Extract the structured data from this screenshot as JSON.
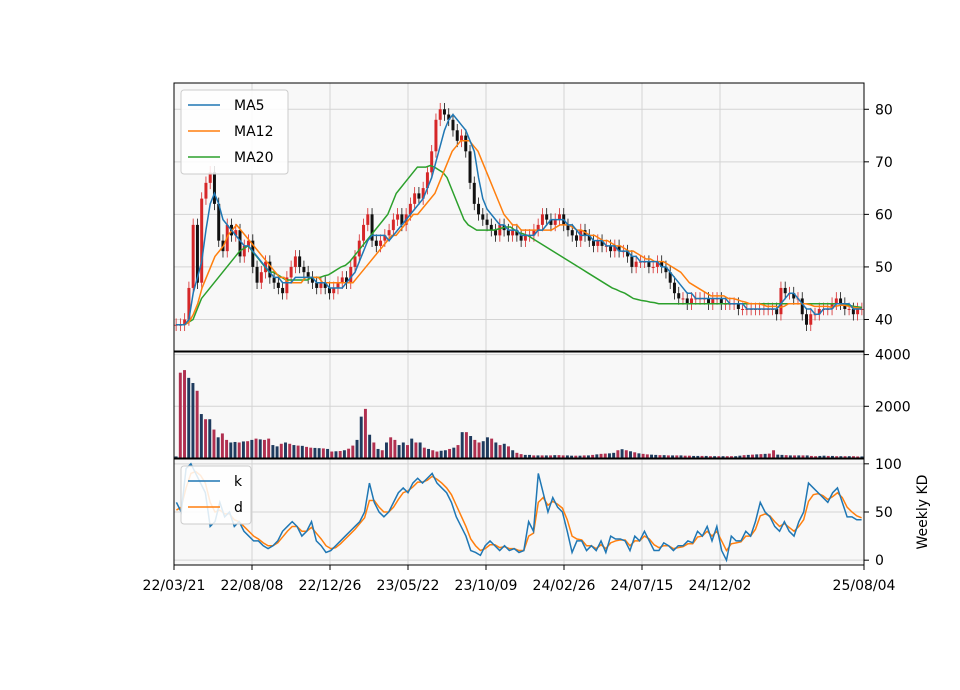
{
  "chart_data": [
    {
      "panel": "price",
      "type": "candlestick",
      "ylim": [
        34,
        85
      ],
      "yticks": [
        40,
        50,
        60,
        70,
        80
      ],
      "grid": true,
      "legend": {
        "placement": "top-left",
        "entries": [
          {
            "label": "MA5",
            "color": "#1f77b4"
          },
          {
            "label": "MA12",
            "color": "#ff7f0e"
          },
          {
            "label": "MA20",
            "color": "#2ca02c"
          }
        ]
      },
      "up_color": "#d62728",
      "down_color": "#111111",
      "close": [
        39,
        39,
        40,
        46,
        58,
        47,
        63,
        66,
        68,
        62,
        55,
        53,
        58,
        56,
        57,
        52,
        54,
        55,
        50,
        47,
        49,
        51,
        48,
        47,
        46,
        45,
        48,
        50,
        52,
        50,
        49,
        48,
        47,
        46,
        47,
        46,
        45,
        46,
        47,
        48,
        47,
        50,
        52,
        55,
        58,
        60,
        55,
        54,
        55,
        56,
        57,
        59,
        60,
        58,
        60,
        62,
        64,
        63,
        65,
        68,
        72,
        78,
        80,
        79,
        78,
        76,
        74,
        75,
        72,
        66,
        62,
        60,
        59,
        58,
        57,
        56,
        58,
        57,
        56,
        57,
        56,
        55,
        56,
        56,
        57,
        58,
        60,
        59,
        58,
        59,
        60,
        58,
        57,
        56,
        55,
        57,
        56,
        55,
        54,
        55,
        54,
        54,
        53,
        54,
        53,
        53,
        52,
        50,
        51,
        51,
        51,
        50,
        50,
        51,
        50,
        49,
        47,
        45,
        44,
        44,
        43,
        44,
        44,
        44,
        44,
        43,
        44,
        44,
        43,
        43,
        43,
        43,
        42,
        42,
        42,
        42,
        42,
        42,
        42,
        42,
        42,
        41,
        46,
        45,
        45,
        44,
        44,
        41,
        39,
        41,
        41,
        42,
        42,
        42,
        43,
        44,
        43,
        42,
        42,
        41,
        42,
        42
      ],
      "ma5_values": [
        39,
        39,
        39,
        40,
        45,
        48,
        51,
        57,
        62,
        64,
        62,
        59,
        58,
        57,
        56,
        55,
        54,
        54,
        53,
        52,
        51,
        50,
        49,
        48,
        48,
        47,
        47,
        47,
        48,
        48,
        48,
        48,
        48,
        47,
        47,
        47,
        46,
        46,
        46,
        46,
        47,
        48,
        49,
        51,
        53,
        55,
        56,
        56,
        56,
        56,
        55,
        56,
        57,
        58,
        59,
        60,
        61,
        62,
        63,
        65,
        67,
        70,
        73,
        76,
        78,
        79,
        78,
        77,
        76,
        74,
        72,
        67,
        63,
        61,
        60,
        59,
        58,
        58,
        57,
        57,
        57,
        56,
        56,
        56,
        56,
        57,
        57,
        58,
        59,
        59,
        59,
        59,
        58,
        58,
        57,
        56,
        56,
        56,
        55,
        55,
        55,
        54,
        54,
        54,
        53,
        53,
        53,
        52,
        52,
        51,
        51,
        51,
        51,
        51,
        50,
        50,
        49,
        48,
        47,
        46,
        45,
        45,
        44,
        44,
        44,
        44,
        44,
        44,
        44,
        44,
        43,
        43,
        43,
        43,
        42,
        42,
        42,
        42,
        42,
        42,
        42,
        42,
        43,
        44,
        45,
        45,
        44,
        43,
        42,
        42,
        41,
        41,
        42,
        42,
        42,
        43,
        43,
        43,
        43,
        42,
        42,
        42
      ],
      "ma12_values": [
        39,
        39,
        39,
        39.5,
        41,
        43,
        46,
        48,
        50,
        52,
        53,
        54,
        56,
        57,
        58,
        57,
        56,
        55,
        54,
        53,
        52,
        51,
        50,
        49,
        48,
        48,
        47,
        47,
        47,
        47,
        48,
        48,
        48,
        48,
        47,
        47,
        47,
        47,
        47,
        47,
        47,
        47,
        48,
        49,
        50,
        51,
        52,
        53,
        54,
        55,
        56,
        56,
        57,
        58,
        59,
        60,
        60,
        61,
        62,
        63,
        64,
        66,
        68,
        70,
        72,
        73,
        74,
        74,
        74,
        73,
        72,
        70,
        68,
        66,
        64,
        62,
        60,
        59,
        58,
        58,
        57,
        57,
        57,
        57,
        57,
        57,
        57,
        57,
        57.5,
        58,
        58,
        58,
        57.5,
        57,
        57,
        56.5,
        56,
        56,
        55.5,
        55,
        55,
        54.5,
        54,
        54,
        53.5,
        53,
        53,
        52.5,
        52,
        51.5,
        51.5,
        51,
        51,
        51,
        50.5,
        50,
        49.5,
        49,
        48,
        47,
        46.5,
        46,
        45.5,
        45,
        44.5,
        44.5,
        44.5,
        44.5,
        44,
        44,
        43.8,
        43.5,
        43.3,
        43,
        43,
        43,
        42.8,
        42.5,
        42.5,
        42.5,
        42.3,
        42.5,
        43,
        43,
        43,
        43,
        43,
        42.8,
        42.5,
        42.5,
        42.5,
        42.5,
        42.3,
        42.5,
        42.7,
        42.7,
        42.5,
        42.3,
        42.2,
        42
      ],
      "ma20_values": [
        39,
        39,
        39,
        39.5,
        40,
        42,
        44,
        45,
        46,
        47,
        48,
        49,
        50,
        51,
        52,
        53,
        53.5,
        54,
        53,
        52,
        51,
        50,
        49,
        49,
        48.5,
        48,
        47.5,
        47.5,
        47.5,
        47.5,
        47.5,
        47.5,
        48,
        48,
        48,
        48.3,
        48.5,
        49,
        49.5,
        50,
        50.3,
        51,
        52,
        53,
        54,
        55,
        56,
        57,
        58,
        59,
        60,
        62,
        64,
        65,
        66,
        67,
        68,
        69,
        69,
        69,
        69.3,
        69,
        68.5,
        68,
        67,
        65,
        63,
        61,
        59,
        58,
        57.5,
        57,
        57,
        57,
        57,
        57,
        57.2,
        57.4,
        57.6,
        57.6,
        57,
        56.5,
        56.3,
        56,
        55.5,
        55,
        54.5,
        54,
        53.5,
        53,
        52.5,
        52,
        51.5,
        51,
        50.5,
        50,
        49.5,
        49,
        48.5,
        48,
        47.5,
        47,
        46.5,
        46,
        45.7,
        45.3,
        45,
        44.5,
        44,
        43.8,
        43.6,
        43.5,
        43.3,
        43.2,
        43,
        43,
        43,
        43,
        43,
        43,
        43,
        43,
        43,
        43,
        43,
        43,
        43,
        43,
        43,
        43,
        43,
        43,
        43,
        43,
        43,
        43,
        43,
        43,
        43,
        43,
        43,
        43,
        43,
        43,
        43,
        43,
        43,
        43,
        43,
        43,
        43,
        43,
        43,
        43,
        43,
        43,
        43,
        43,
        42.8,
        42.7,
        42.5,
        42.4,
        42.3
      ]
    },
    {
      "panel": "volume",
      "type": "bar",
      "ylim": [
        0,
        4100
      ],
      "yticks": [
        2000,
        4000
      ],
      "grid": true,
      "values": [
        60,
        3300,
        3400,
        3100,
        2900,
        2600,
        1700,
        1500,
        1500,
        1100,
        800,
        950,
        700,
        600,
        620,
        600,
        640,
        650,
        700,
        750,
        720,
        700,
        750,
        500,
        450,
        550,
        600,
        550,
        500,
        480,
        470,
        430,
        400,
        390,
        380,
        370,
        350,
        250,
        260,
        270,
        300,
        360,
        480,
        700,
        1600,
        1900,
        900,
        600,
        350,
        300,
        600,
        800,
        700,
        500,
        600,
        500,
        750,
        600,
        600,
        400,
        350,
        300,
        250,
        280,
        300,
        350,
        400,
        500,
        1000,
        1000,
        850,
        700,
        600,
        650,
        800,
        750,
        600,
        500,
        550,
        450,
        300,
        200,
        150,
        120,
        120,
        100,
        100,
        100,
        100,
        100,
        110,
        110,
        100,
        100,
        90,
        90,
        90,
        100,
        100,
        120,
        140,
        160,
        170,
        180,
        200,
        300,
        340,
        300,
        260,
        220,
        180,
        160,
        140,
        130,
        120,
        110,
        110,
        100,
        100,
        100,
        100,
        90,
        90,
        80,
        80,
        80,
        80,
        70,
        70,
        70,
        70,
        70,
        70,
        70,
        90,
        110,
        120,
        130,
        140,
        150,
        160,
        170,
        300,
        130,
        120,
        110,
        100,
        100,
        100,
        100,
        100,
        80,
        70,
        80,
        90,
        80,
        80,
        70,
        70,
        70,
        70,
        70,
        60,
        60
      ],
      "colors": [
        "#1f3b5e",
        "#b03050",
        "#b03050",
        "#1f3b5e",
        "#1f3b5e",
        "#b03050",
        "#1f3b5e",
        "#b03050",
        "#1f3b5e",
        "#b03050"
      ]
    },
    {
      "panel": "kd",
      "type": "line",
      "ylim": [
        -5,
        105
      ],
      "yticks": [
        0,
        50,
        100
      ],
      "ylabel": "Weekly KD",
      "grid": true,
      "legend": {
        "placement": "top-left",
        "entries": [
          {
            "label": "k",
            "color": "#1f77b4"
          },
          {
            "label": "d",
            "color": "#ff7f0e"
          }
        ]
      },
      "k_values": [
        60,
        50,
        95,
        100,
        90,
        80,
        70,
        35,
        40,
        60,
        45,
        50,
        35,
        40,
        30,
        25,
        20,
        20,
        15,
        12,
        15,
        20,
        30,
        35,
        40,
        35,
        25,
        30,
        40,
        20,
        15,
        8,
        10,
        15,
        20,
        25,
        30,
        35,
        40,
        50,
        80,
        60,
        50,
        45,
        50,
        60,
        70,
        75,
        70,
        80,
        85,
        80,
        85,
        90,
        80,
        75,
        70,
        60,
        45,
        35,
        25,
        10,
        8,
        5,
        15,
        20,
        15,
        10,
        15,
        10,
        12,
        8,
        10,
        40,
        30,
        90,
        70,
        50,
        65,
        55,
        50,
        30,
        8,
        20,
        20,
        10,
        15,
        10,
        20,
        8,
        25,
        22,
        22,
        20,
        10,
        25,
        20,
        30,
        20,
        10,
        10,
        18,
        15,
        10,
        15,
        15,
        20,
        18,
        30,
        25,
        35,
        20,
        35,
        10,
        0,
        25,
        20,
        20,
        30,
        25,
        40,
        60,
        50,
        45,
        35,
        30,
        40,
        30,
        25,
        40,
        50,
        80,
        75,
        70,
        65,
        60,
        70,
        75,
        60,
        45,
        45,
        42,
        42
      ],
      "d_values": [
        52,
        55,
        75,
        90,
        92,
        88,
        80,
        60,
        50,
        52,
        48,
        48,
        42,
        40,
        35,
        30,
        25,
        22,
        18,
        15,
        15,
        18,
        24,
        30,
        35,
        35,
        30,
        30,
        34,
        28,
        22,
        15,
        12,
        13,
        17,
        22,
        27,
        32,
        38,
        44,
        62,
        62,
        55,
        50,
        50,
        55,
        63,
        70,
        72,
        76,
        81,
        81,
        83,
        87,
        84,
        80,
        75,
        68,
        57,
        46,
        35,
        22,
        15,
        10,
        12,
        16,
        16,
        13,
        14,
        12,
        12,
        10,
        10,
        25,
        28,
        60,
        65,
        57,
        61,
        58,
        54,
        42,
        25,
        22,
        21,
        15,
        15,
        12,
        16,
        12,
        18,
        20,
        21,
        21,
        15,
        20,
        20,
        25,
        22,
        16,
        13,
        15,
        15,
        12,
        13,
        14,
        17,
        17,
        24,
        25,
        30,
        25,
        30,
        20,
        10,
        17,
        18,
        19,
        25,
        25,
        32,
        46,
        48,
        46,
        40,
        35,
        38,
        34,
        30,
        35,
        42,
        61,
        68,
        69,
        67,
        63,
        66,
        70,
        65,
        55,
        50,
        46,
        44
      ]
    }
  ],
  "x_axis": {
    "tick_labels": [
      "22/03/21",
      "22/08/08",
      "22/12/26",
      "23/05/22",
      "23/10/09",
      "24/02/26",
      "24/07/15",
      "24/12/02",
      "25/08/04"
    ]
  }
}
